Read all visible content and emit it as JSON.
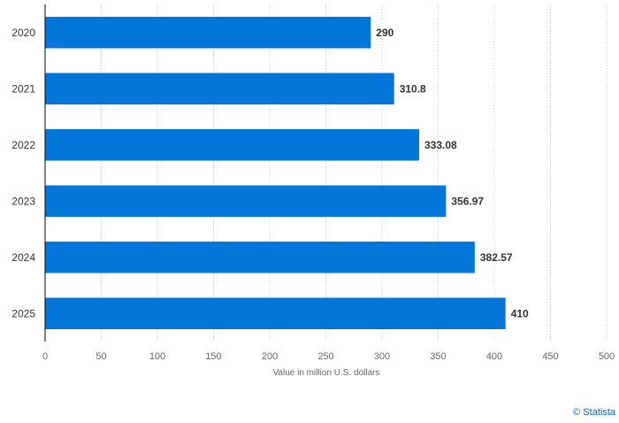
{
  "chart_data": {
    "type": "bar",
    "orientation": "horizontal",
    "categories": [
      "2020",
      "2021",
      "2022",
      "2023",
      "2024",
      "2025"
    ],
    "values": [
      290,
      310.8,
      333.08,
      356.97,
      382.57,
      410
    ],
    "value_labels": [
      "290",
      "310.8",
      "333.08",
      "356.97",
      "382.57",
      "410"
    ],
    "title": "",
    "xlabel": "Value in million U.S. dollars",
    "ylabel": "",
    "xlim": [
      0,
      500
    ],
    "x_ticks": [
      0,
      50,
      100,
      150,
      200,
      250,
      300,
      350,
      400,
      450,
      500
    ],
    "grid": "vertical dotted",
    "bar_color": "#0476d9"
  },
  "credit": "© Statista"
}
